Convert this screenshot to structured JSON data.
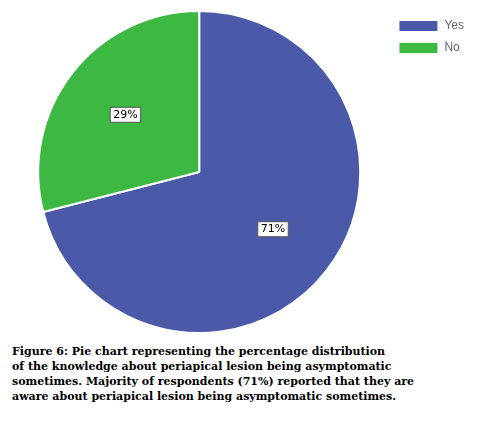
{
  "chart_data": {
    "type": "pie",
    "categories": [
      "Yes",
      "No"
    ],
    "values": [
      71,
      29
    ],
    "value_labels": [
      "71%",
      "29%"
    ],
    "colors": [
      "#4a5aa8",
      "#3cb843"
    ],
    "data_labels": true,
    "legend": "upper right",
    "annotations": [
      "Figure 6: Pie chart representing the percentage distribution",
      "of the knowledge about periapical lesion being asymptomatic",
      "sometimes. Majority of respondents (71%) reported that they are",
      "aware about periapical lesion being asymptomatic sometimes."
    ]
  }
}
